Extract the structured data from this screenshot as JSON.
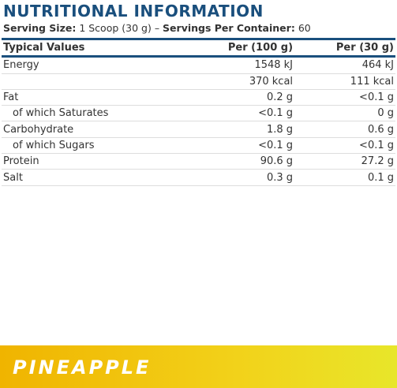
{
  "header": {
    "title": "NUTRITIONAL INFORMATION",
    "serving_size_label": "Serving Size:",
    "serving_size": "1 Scoop (30 g)",
    "separator": "–",
    "servings_label": "Servings Per Container:",
    "servings": "60"
  },
  "table": {
    "columns": [
      "Typical Values",
      "Per (100 g)",
      "Per (30 g)"
    ],
    "rows": [
      [
        "Energy",
        "1548 kJ",
        "464 kJ"
      ],
      [
        "",
        "370 kcal",
        "111 kcal"
      ],
      [
        "Fat",
        "0.2 g",
        "<0.1 g"
      ],
      [
        "of which Saturates",
        "<0.1 g",
        "0 g"
      ],
      [
        "Carbohydrate",
        "1.8 g",
        "0.6 g"
      ],
      [
        "of which Sugars",
        "<0.1 g",
        "<0.1 g"
      ],
      [
        "Protein",
        "90.6 g",
        "27.2 g"
      ],
      [
        "Salt",
        "0.3 g",
        "0.1 g"
      ]
    ]
  },
  "banner": {
    "flavor": "PINEAPPLE"
  }
}
